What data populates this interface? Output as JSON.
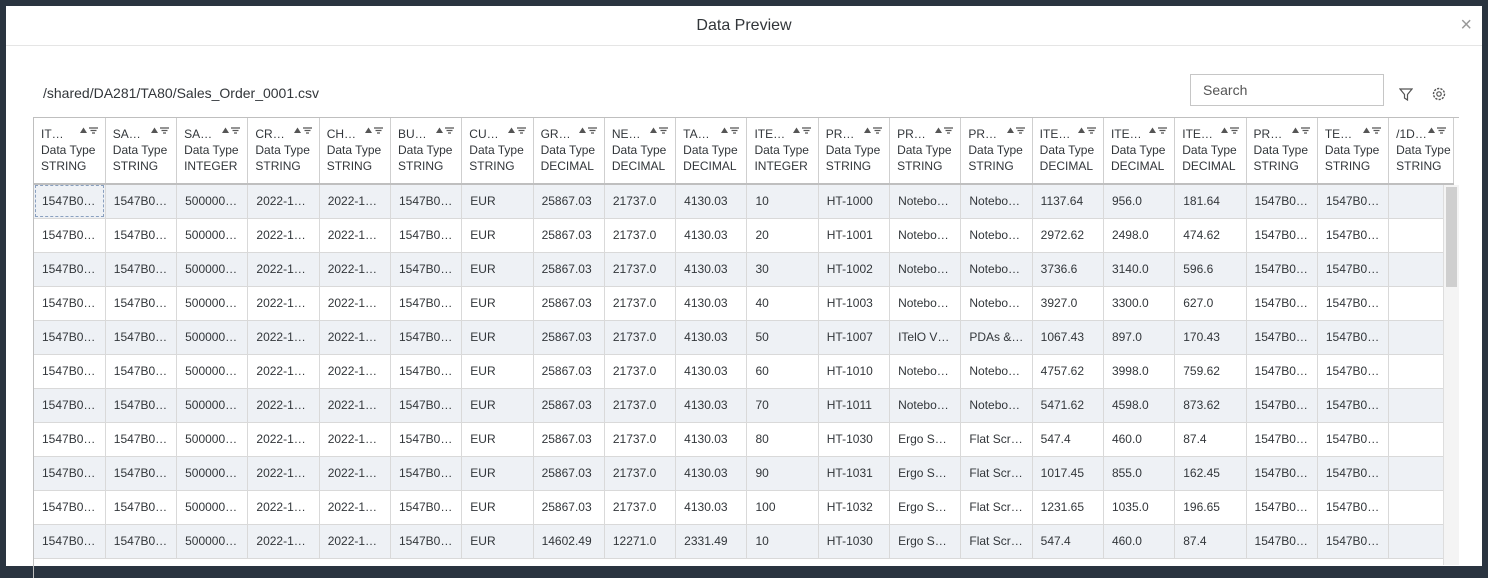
{
  "dialog": {
    "title": "Data Preview",
    "path": "/shared/DA281/TA80/Sales_Order_0001.csv",
    "search_placeholder": "Search"
  },
  "columns": [
    {
      "name": "IT…",
      "type_label": "Data Type",
      "type": "STRING"
    },
    {
      "name": "SA…",
      "type_label": "Data Type",
      "type": "STRING"
    },
    {
      "name": "SA…",
      "type_label": "Data Type",
      "type": "INTEGER"
    },
    {
      "name": "CR…",
      "type_label": "Data Type",
      "type": "STRING"
    },
    {
      "name": "CH…",
      "type_label": "Data Type",
      "type": "STRING"
    },
    {
      "name": "BU…",
      "type_label": "Data Type",
      "type": "STRING"
    },
    {
      "name": "CU…",
      "type_label": "Data Type",
      "type": "STRING"
    },
    {
      "name": "GR…",
      "type_label": "Data Type",
      "type": "DECIMAL"
    },
    {
      "name": "NE…",
      "type_label": "Data Type",
      "type": "DECIMAL"
    },
    {
      "name": "TA…",
      "type_label": "Data Type",
      "type": "DECIMAL"
    },
    {
      "name": "ITE…",
      "type_label": "Data Type",
      "type": "INTEGER"
    },
    {
      "name": "PR…",
      "type_label": "Data Type",
      "type": "STRING"
    },
    {
      "name": "PR…",
      "type_label": "Data Type",
      "type": "STRING"
    },
    {
      "name": "PR…",
      "type_label": "Data Type",
      "type": "STRING"
    },
    {
      "name": "ITE…",
      "type_label": "Data Type",
      "type": "DECIMAL"
    },
    {
      "name": "ITE…",
      "type_label": "Data Type",
      "type": "DECIMAL"
    },
    {
      "name": "ITE…",
      "type_label": "Data Type",
      "type": "DECIMAL"
    },
    {
      "name": "PR…",
      "type_label": "Data Type",
      "type": "STRING"
    },
    {
      "name": "TE…",
      "type_label": "Data Type",
      "type": "STRING"
    },
    {
      "name": "/1D…",
      "type_label": "Data Type",
      "type": "STRING"
    }
  ],
  "rows": [
    [
      "1547B0…",
      "1547B0…",
      "500000…",
      "2022-1…",
      "2022-1…",
      "1547B0…",
      "EUR",
      "25867.03",
      "21737.0",
      "4130.03",
      "10",
      "HT-1000",
      "Notebo…",
      "Notebo…",
      "1137.64",
      "956.0",
      "181.64",
      "1547B0…",
      "1547B0…",
      null
    ],
    [
      "1547B0…",
      "1547B0…",
      "500000…",
      "2022-1…",
      "2022-1…",
      "1547B0…",
      "EUR",
      "25867.03",
      "21737.0",
      "4130.03",
      "20",
      "HT-1001",
      "Notebo…",
      "Notebo…",
      "2972.62",
      "2498.0",
      "474.62",
      "1547B0…",
      "1547B0…",
      null
    ],
    [
      "1547B0…",
      "1547B0…",
      "500000…",
      "2022-1…",
      "2022-1…",
      "1547B0…",
      "EUR",
      "25867.03",
      "21737.0",
      "4130.03",
      "30",
      "HT-1002",
      "Notebo…",
      "Notebo…",
      "3736.6",
      "3140.0",
      "596.6",
      "1547B0…",
      "1547B0…",
      null
    ],
    [
      "1547B0…",
      "1547B0…",
      "500000…",
      "2022-1…",
      "2022-1…",
      "1547B0…",
      "EUR",
      "25867.03",
      "21737.0",
      "4130.03",
      "40",
      "HT-1003",
      "Notebo…",
      "Notebo…",
      "3927.0",
      "3300.0",
      "627.0",
      "1547B0…",
      "1547B0…",
      null
    ],
    [
      "1547B0…",
      "1547B0…",
      "500000…",
      "2022-1…",
      "2022-1…",
      "1547B0…",
      "EUR",
      "25867.03",
      "21737.0",
      "4130.03",
      "50",
      "HT-1007",
      "ITelO V…",
      "PDAs &…",
      "1067.43",
      "897.0",
      "170.43",
      "1547B0…",
      "1547B0…",
      null
    ],
    [
      "1547B0…",
      "1547B0…",
      "500000…",
      "2022-1…",
      "2022-1…",
      "1547B0…",
      "EUR",
      "25867.03",
      "21737.0",
      "4130.03",
      "60",
      "HT-1010",
      "Notebo…",
      "Notebo…",
      "4757.62",
      "3998.0",
      "759.62",
      "1547B0…",
      "1547B0…",
      null
    ],
    [
      "1547B0…",
      "1547B0…",
      "500000…",
      "2022-1…",
      "2022-1…",
      "1547B0…",
      "EUR",
      "25867.03",
      "21737.0",
      "4130.03",
      "70",
      "HT-1011",
      "Notebo…",
      "Notebo…",
      "5471.62",
      "4598.0",
      "873.62",
      "1547B0…",
      "1547B0…",
      null
    ],
    [
      "1547B0…",
      "1547B0…",
      "500000…",
      "2022-1…",
      "2022-1…",
      "1547B0…",
      "EUR",
      "25867.03",
      "21737.0",
      "4130.03",
      "80",
      "HT-1030",
      "Ergo S…",
      "Flat Scr…",
      "547.4",
      "460.0",
      "87.4",
      "1547B0…",
      "1547B0…",
      null
    ],
    [
      "1547B0…",
      "1547B0…",
      "500000…",
      "2022-1…",
      "2022-1…",
      "1547B0…",
      "EUR",
      "25867.03",
      "21737.0",
      "4130.03",
      "90",
      "HT-1031",
      "Ergo S…",
      "Flat Scr…",
      "1017.45",
      "855.0",
      "162.45",
      "1547B0…",
      "1547B0…",
      null
    ],
    [
      "1547B0…",
      "1547B0…",
      "500000…",
      "2022-1…",
      "2022-1…",
      "1547B0…",
      "EUR",
      "25867.03",
      "21737.0",
      "4130.03",
      "100",
      "HT-1032",
      "Ergo S…",
      "Flat Scr…",
      "1231.65",
      "1035.0",
      "196.65",
      "1547B0…",
      "1547B0…",
      null
    ],
    [
      "1547B0…",
      "1547B0…",
      "500000…",
      "2022-1…",
      "2022-1…",
      "1547B0…",
      "EUR",
      "14602.49",
      "12271.0",
      "2331.49",
      "10",
      "HT-1030",
      "Ergo S…",
      "Flat Scr…",
      "547.4",
      "460.0",
      "87.4",
      "1547B0…",
      "1547B0…",
      null
    ]
  ]
}
